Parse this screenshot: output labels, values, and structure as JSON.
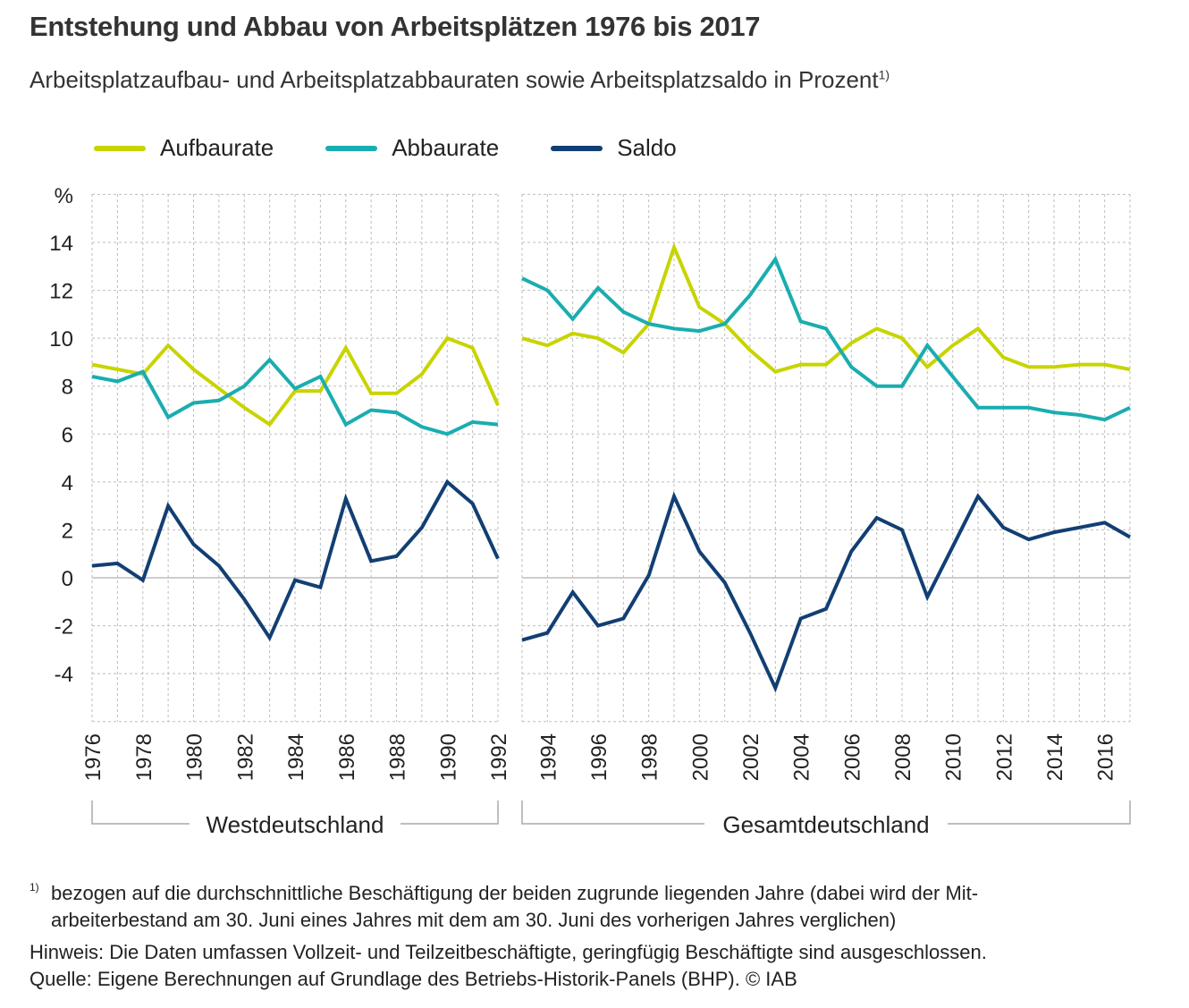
{
  "header": {
    "title": "Entstehung und Abbau von Arbeitsplätzen 1976 bis 2017",
    "subtitle": "Arbeitsplatzaufbau- und Arbeitsplatzabbauraten sowie Arbeitsplatzsaldo in Prozent",
    "subtitle_sup": "1)"
  },
  "colors": {
    "aufbau": "#c8d400",
    "abbau": "#1aadb0",
    "saldo": "#123f73",
    "grid": "#bdbdbd",
    "zero": "#bdbdbd"
  },
  "chart_data": {
    "type": "line",
    "title": "Entstehung und Abbau von Arbeitsplätzen 1976 bis 2017",
    "ylabel": "%",
    "ylim": [
      -6,
      16
    ],
    "yticks": [
      -4,
      -2,
      0,
      2,
      4,
      6,
      8,
      10,
      12,
      14
    ],
    "grid": true,
    "legend_position": "top-left",
    "legend": [
      "Aufbaurate",
      "Abbaurate",
      "Saldo"
    ],
    "panels": [
      {
        "name": "Westdeutschland",
        "x": [
          1976,
          1977,
          1978,
          1979,
          1980,
          1981,
          1982,
          1983,
          1984,
          1985,
          1986,
          1987,
          1988,
          1989,
          1990,
          1991,
          1992
        ],
        "xticks": [
          "1976",
          "1978",
          "1980",
          "1982",
          "1984",
          "1986",
          "1988",
          "1990",
          "1992"
        ],
        "series": [
          {
            "name": "Aufbaurate",
            "values": [
              8.9,
              8.7,
              8.5,
              9.7,
              8.7,
              7.9,
              7.1,
              6.4,
              7.8,
              7.8,
              9.6,
              7.7,
              7.7,
              8.5,
              10.0,
              9.6,
              7.2
            ]
          },
          {
            "name": "Abbaurate",
            "values": [
              8.4,
              8.2,
              8.6,
              6.7,
              7.3,
              7.4,
              8.0,
              9.1,
              7.9,
              8.4,
              6.4,
              7.0,
              6.9,
              6.3,
              6.0,
              6.5,
              6.4
            ]
          },
          {
            "name": "Saldo",
            "values": [
              0.5,
              0.6,
              -0.1,
              3.0,
              1.4,
              0.5,
              -0.9,
              -2.5,
              -0.1,
              -0.4,
              3.3,
              0.7,
              0.9,
              2.1,
              4.0,
              3.1,
              0.8
            ]
          }
        ]
      },
      {
        "name": "Gesamtdeutschland",
        "x": [
          1993,
          1994,
          1995,
          1996,
          1997,
          1998,
          1999,
          2000,
          2001,
          2002,
          2003,
          2004,
          2005,
          2006,
          2007,
          2008,
          2009,
          2010,
          2011,
          2012,
          2013,
          2014,
          2015,
          2016,
          2017
        ],
        "xticks": [
          "1994",
          "1996",
          "1998",
          "2000",
          "2002",
          "2004",
          "2006",
          "2008",
          "2010",
          "2012",
          "2014",
          "2016"
        ],
        "series": [
          {
            "name": "Aufbaurate",
            "values": [
              10.0,
              9.7,
              10.2,
              10.0,
              9.4,
              10.6,
              13.8,
              11.3,
              10.6,
              9.5,
              8.6,
              8.9,
              8.9,
              9.8,
              10.4,
              10.0,
              8.8,
              9.7,
              10.4,
              9.2,
              8.8,
              8.8,
              8.9,
              8.9,
              8.7
            ]
          },
          {
            "name": "Abbaurate",
            "values": [
              12.5,
              12.0,
              10.8,
              12.1,
              11.1,
              10.6,
              10.4,
              10.3,
              10.6,
              11.8,
              13.3,
              10.7,
              10.4,
              8.8,
              8.0,
              8.0,
              9.7,
              8.4,
              7.1,
              7.1,
              7.1,
              6.9,
              6.8,
              6.6,
              7.1
            ]
          },
          {
            "name": "Saldo",
            "values": [
              -2.6,
              -2.3,
              -0.6,
              -2.0,
              -1.7,
              0.1,
              3.4,
              1.1,
              -0.2,
              -2.3,
              -4.6,
              -1.7,
              -1.3,
              1.1,
              2.5,
              2.0,
              -0.8,
              1.3,
              3.4,
              2.1,
              1.6,
              1.9,
              2.1,
              2.3,
              1.7
            ]
          }
        ]
      }
    ]
  },
  "footer": {
    "footnote_mark": "1)",
    "footnote_line1": "bezogen auf die durchschnittliche Beschäftigung der beiden zugrunde liegenden Jahre (dabei wird der Mit-",
    "footnote_line2": "arbeiterbestand am 30. Juni eines Jahres mit dem am 30. Juni des vorherigen Jahres verglichen)",
    "hinweis": "Hinweis: Die Daten umfassen Vollzeit- und Teilzeitbeschäftigte, geringfügig Beschäftigte sind ausgeschlossen.",
    "quelle": "Quelle: Eigene Berechnungen auf Grundlage des Betriebs-Historik-Panels (BHP).   © IAB"
  }
}
